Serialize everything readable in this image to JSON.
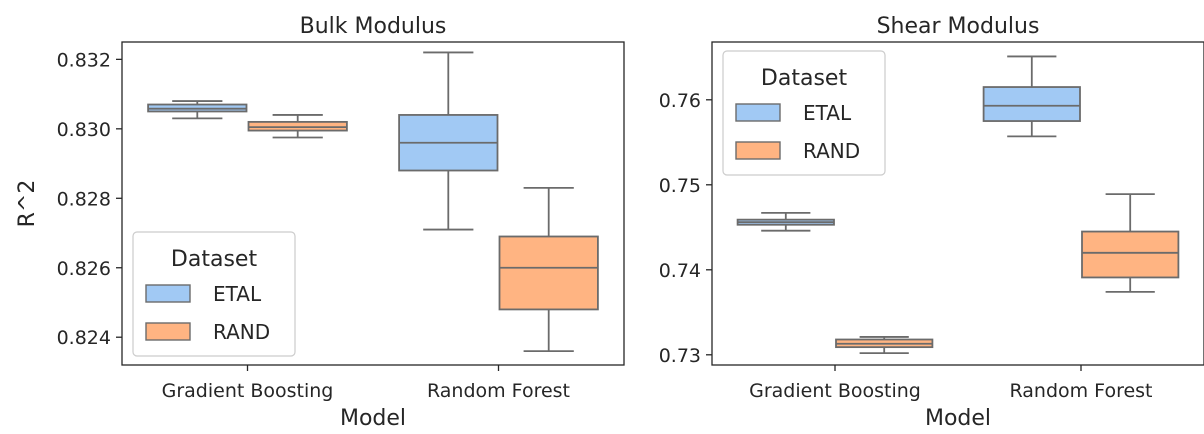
{
  "chart_data": [
    {
      "type": "box",
      "title": "Bulk Modulus",
      "xlabel": "Model",
      "ylabel": "R^2",
      "categories": [
        "Gradient Boosting",
        "Random Forest"
      ],
      "ylim": [
        0.8232,
        0.8325
      ],
      "yticks": [
        0.824,
        0.826,
        0.828,
        0.83,
        0.832
      ],
      "ytick_labels": [
        "0.824",
        "0.826",
        "0.828",
        "0.830",
        "0.832"
      ],
      "legend": {
        "title": "Dataset",
        "placement": "lower-left"
      },
      "series": [
        {
          "name": "ETAL",
          "color": "#a1c9f4",
          "boxes": [
            {
              "min": 0.8303,
              "q1": 0.8305,
              "median": 0.83058,
              "q3": 0.8307,
              "max": 0.8308
            },
            {
              "min": 0.8271,
              "q1": 0.8288,
              "median": 0.8296,
              "q3": 0.8304,
              "max": 0.8322
            }
          ]
        },
        {
          "name": "RAND",
          "color": "#ffb482",
          "boxes": [
            {
              "min": 0.82975,
              "q1": 0.82995,
              "median": 0.83005,
              "q3": 0.8302,
              "max": 0.8304
            },
            {
              "min": 0.8236,
              "q1": 0.8248,
              "median": 0.826,
              "q3": 0.8269,
              "max": 0.8283
            }
          ]
        }
      ]
    },
    {
      "type": "box",
      "title": "Shear Modulus",
      "xlabel": "Model",
      "ylabel": "",
      "categories": [
        "Gradient Boosting",
        "Random Forest"
      ],
      "ylim": [
        0.7288,
        0.7668
      ],
      "yticks": [
        0.73,
        0.74,
        0.75,
        0.76
      ],
      "ytick_labels": [
        "0.73",
        "0.74",
        "0.75",
        "0.76"
      ],
      "legend": {
        "title": "Dataset",
        "placement": "upper-left"
      },
      "series": [
        {
          "name": "ETAL",
          "color": "#a1c9f4",
          "boxes": [
            {
              "min": 0.7446,
              "q1": 0.7453,
              "median": 0.7456,
              "q3": 0.7459,
              "max": 0.7467
            },
            {
              "min": 0.7557,
              "q1": 0.7575,
              "median": 0.7593,
              "q3": 0.7615,
              "max": 0.7651
            }
          ]
        },
        {
          "name": "RAND",
          "color": "#ffb482",
          "boxes": [
            {
              "min": 0.7302,
              "q1": 0.7309,
              "median": 0.7313,
              "q3": 0.7318,
              "max": 0.7321
            },
            {
              "min": 0.7374,
              "q1": 0.7391,
              "median": 0.742,
              "q3": 0.7445,
              "max": 0.7489
            }
          ]
        }
      ]
    }
  ]
}
